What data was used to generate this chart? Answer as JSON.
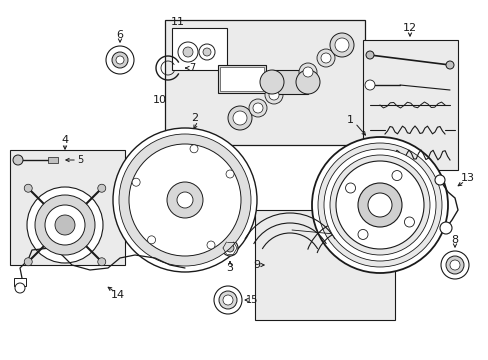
{
  "bg_color": "#ffffff",
  "line_color": "#1a1a1a",
  "box_fill": "#ebebeb",
  "figsize": [
    4.89,
    3.6
  ],
  "dpi": 100
}
